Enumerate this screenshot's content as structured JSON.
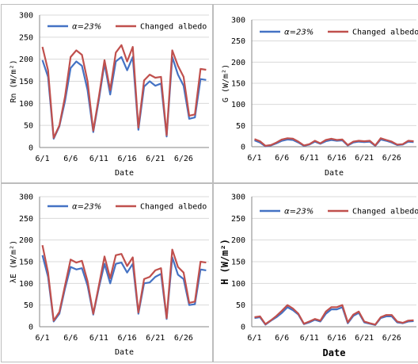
{
  "colors": {
    "base": "#4472c4",
    "changed": "#c0504d",
    "axis": "#868686",
    "grid": "#d9d9d9"
  },
  "chart_data": [
    {
      "type": "line",
      "ylabel": "Rn (W/m²)",
      "xlabel": "Date",
      "ylim": [
        0,
        300
      ],
      "yticks": [
        0,
        50,
        100,
        150,
        200,
        250,
        300
      ],
      "xticks": [
        "6/1",
        "6/6",
        "6/11",
        "6/16",
        "6/21",
        "6/26"
      ],
      "grid": true,
      "legend": "top",
      "x": [
        1,
        2,
        3,
        4,
        5,
        6,
        7,
        8,
        9,
        10,
        11,
        12,
        13,
        14,
        15,
        16,
        17,
        18,
        19,
        20,
        21,
        22,
        23,
        24,
        25,
        26,
        27,
        28,
        29,
        30
      ],
      "series": [
        {
          "name": "α=23%",
          "color_key": "base",
          "values": [
            198,
            160,
            20,
            48,
            105,
            180,
            195,
            185,
            130,
            35,
            108,
            190,
            120,
            195,
            205,
            175,
            205,
            40,
            138,
            150,
            140,
            145,
            25,
            205,
            165,
            140,
            65,
            68,
            155,
            153
          ]
        },
        {
          "name": "Changed albedo",
          "color_key": "changed",
          "values": [
            228,
            175,
            22,
            50,
            115,
            205,
            220,
            210,
            150,
            38,
            115,
            198,
            130,
            215,
            232,
            195,
            228,
            45,
            152,
            165,
            158,
            160,
            28,
            220,
            185,
            160,
            72,
            75,
            178,
            176
          ]
        }
      ]
    },
    {
      "type": "line",
      "ylabel": "G (W/m²)",
      "xlabel": "Date",
      "ylim": [
        0,
        300
      ],
      "yticks": [
        0,
        50,
        100,
        150,
        200,
        250,
        300
      ],
      "xticks": [
        "6/1",
        "6/6",
        "6/11",
        "6/16",
        "6/21",
        "6/26"
      ],
      "grid": true,
      "legend": "top",
      "x": [
        1,
        2,
        3,
        4,
        5,
        6,
        7,
        8,
        9,
        10,
        11,
        12,
        13,
        14,
        15,
        16,
        17,
        18,
        19,
        20,
        21,
        22,
        23,
        24,
        25,
        26,
        27,
        28,
        29,
        30
      ],
      "series": [
        {
          "name": "α=23%",
          "color_key": "base",
          "values": [
            15,
            10,
            1,
            3,
            8,
            14,
            17,
            16,
            10,
            2,
            5,
            12,
            7,
            13,
            16,
            14,
            15,
            3,
            10,
            12,
            11,
            12,
            2,
            17,
            14,
            10,
            4,
            5,
            12,
            11
          ]
        },
        {
          "name": "Changed albedo",
          "color_key": "changed",
          "values": [
            18,
            13,
            2,
            4,
            10,
            17,
            20,
            19,
            12,
            3,
            6,
            14,
            8,
            16,
            19,
            16,
            17,
            4,
            12,
            14,
            13,
            14,
            3,
            20,
            16,
            12,
            5,
            6,
            14,
            13
          ]
        }
      ]
    },
    {
      "type": "line",
      "ylabel": "λE (W/m²)",
      "xlabel": "Date",
      "ylim": [
        0,
        300
      ],
      "yticks": [
        0,
        50,
        100,
        150,
        200,
        250,
        300
      ],
      "xticks": [
        "6/1",
        "6/6",
        "6/11",
        "6/16",
        "6/21",
        "6/26"
      ],
      "grid": true,
      "legend": "top",
      "x": [
        1,
        2,
        3,
        4,
        5,
        6,
        7,
        8,
        9,
        10,
        11,
        12,
        13,
        14,
        15,
        16,
        17,
        18,
        19,
        20,
        21,
        22,
        23,
        24,
        25,
        26,
        27,
        28,
        29,
        30
      ],
      "series": [
        {
          "name": "α=23%",
          "color_key": "base",
          "values": [
            165,
            115,
            12,
            30,
            88,
            138,
            132,
            135,
            95,
            28,
            90,
            145,
            100,
            145,
            148,
            125,
            145,
            30,
            100,
            102,
            115,
            122,
            18,
            160,
            120,
            110,
            50,
            52,
            132,
            130
          ]
        },
        {
          "name": "Changed albedo",
          "color_key": "changed",
          "values": [
            188,
            125,
            14,
            34,
            95,
            155,
            148,
            152,
            105,
            30,
            95,
            162,
            112,
            165,
            168,
            140,
            160,
            33,
            110,
            115,
            130,
            135,
            20,
            178,
            138,
            125,
            55,
            58,
            150,
            148
          ]
        }
      ]
    },
    {
      "type": "line",
      "ylabel": "H (W/m²)",
      "xlabel": "Date",
      "ylim": [
        0,
        300
      ],
      "yticks": [
        0,
        50,
        100,
        150,
        200,
        250,
        300
      ],
      "xticks": [
        "6/1",
        "6/6",
        "6/11",
        "6/16",
        "6/21",
        "6/26"
      ],
      "grid": true,
      "legend": "top",
      "x": [
        1,
        2,
        3,
        4,
        5,
        6,
        7,
        8,
        9,
        10,
        11,
        12,
        13,
        14,
        15,
        16,
        17,
        18,
        19,
        20,
        21,
        22,
        23,
        24,
        25,
        26,
        27,
        28,
        29,
        30
      ],
      "series": [
        {
          "name": "α=23%",
          "color_key": "base",
          "values": [
            20,
            22,
            5,
            14,
            22,
            32,
            45,
            38,
            28,
            6,
            10,
            16,
            12,
            30,
            40,
            40,
            45,
            8,
            25,
            32,
            10,
            7,
            4,
            20,
            24,
            24,
            10,
            8,
            12,
            13
          ]
        },
        {
          "name": "Changed albedo",
          "color_key": "changed",
          "values": [
            22,
            24,
            6,
            15,
            25,
            37,
            50,
            42,
            30,
            7,
            12,
            18,
            14,
            35,
            45,
            45,
            50,
            10,
            28,
            35,
            12,
            8,
            5,
            22,
            27,
            27,
            12,
            9,
            14,
            15
          ]
        }
      ]
    }
  ]
}
